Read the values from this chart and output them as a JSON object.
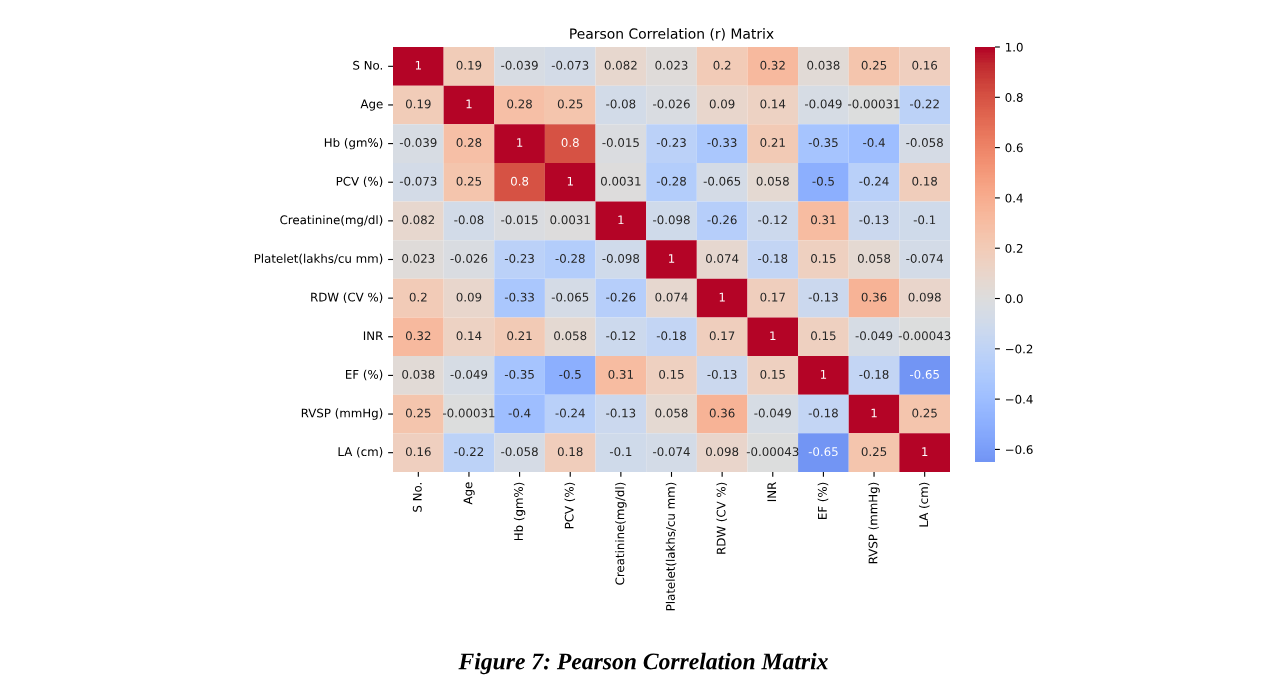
{
  "chart_data": {
    "type": "heatmap",
    "title": "Pearson Correlation (r) Matrix",
    "categories": [
      "S No.",
      "Age",
      "Hb (gm%)",
      "PCV (%)",
      "Creatinine(mg/dl)",
      "Platelet(lakhs/cu mm)",
      "RDW (CV %)",
      "INR",
      "EF (%)",
      "RVSP (mmHg)",
      "LA (cm)"
    ],
    "y_categories": [
      "S No.",
      "Age",
      "Hb (gm%)",
      "PCV (%)",
      "Creatinine(mg/dl)",
      "Platelet(lakhs/cu mm)",
      "RDW (CV %)",
      "INR",
      "EF (%)",
      "RVSP (mmHg)",
      "LA (cm)"
    ],
    "cells": [
      [
        1,
        0.19,
        -0.039,
        -0.073,
        0.082,
        0.023,
        0.2,
        0.32,
        0.038,
        0.25,
        0.16
      ],
      [
        0.19,
        1,
        0.28,
        0.25,
        -0.08,
        -0.026,
        0.09,
        0.14,
        -0.049,
        -0.00031,
        -0.22
      ],
      [
        -0.039,
        0.28,
        1,
        0.8,
        -0.015,
        -0.23,
        -0.33,
        0.21,
        -0.35,
        -0.4,
        -0.058
      ],
      [
        -0.073,
        0.25,
        0.8,
        1,
        0.0031,
        -0.28,
        -0.065,
        0.058,
        -0.5,
        -0.24,
        0.18
      ],
      [
        0.082,
        -0.08,
        -0.015,
        0.0031,
        1,
        -0.098,
        -0.26,
        -0.12,
        0.31,
        -0.13,
        -0.1
      ],
      [
        0.023,
        -0.026,
        -0.23,
        -0.28,
        -0.098,
        1,
        0.074,
        -0.18,
        0.15,
        0.058,
        -0.074
      ],
      [
        0.2,
        0.09,
        -0.33,
        -0.065,
        -0.26,
        0.074,
        1,
        0.17,
        -0.13,
        0.36,
        0.098
      ],
      [
        0.32,
        0.14,
        0.21,
        0.058,
        -0.12,
        -0.18,
        0.17,
        1,
        0.15,
        -0.049,
        -0.00043
      ],
      [
        0.038,
        -0.049,
        -0.35,
        -0.5,
        0.31,
        0.15,
        -0.13,
        0.15,
        1,
        -0.18,
        -0.65
      ],
      [
        0.25,
        -0.00031,
        -0.4,
        -0.24,
        -0.13,
        0.058,
        0.36,
        -0.049,
        -0.18,
        1,
        0.25
      ],
      [
        0.16,
        -0.22,
        -0.058,
        0.18,
        -0.1,
        -0.074,
        0.098,
        -0.00043,
        -0.65,
        0.25,
        1
      ]
    ],
    "data_labels": true,
    "clim": [
      -0.65,
      1.0
    ],
    "cticks": [
      {
        "value": -0.6,
        "label": "−0.6"
      },
      {
        "value": -0.4,
        "label": "−0.4"
      },
      {
        "value": -0.2,
        "label": "−0.2"
      },
      {
        "value": 0.0,
        "label": "0.0"
      },
      {
        "value": 0.2,
        "label": "0.2"
      },
      {
        "value": 0.4,
        "label": "0.4"
      },
      {
        "value": 0.6,
        "label": "0.6"
      },
      {
        "value": 0.8,
        "label": "0.8"
      },
      {
        "value": 1.0,
        "label": "1.0"
      }
    ],
    "annotations": [
      "Figure 7: Pearson Correlation Matrix"
    ]
  }
}
